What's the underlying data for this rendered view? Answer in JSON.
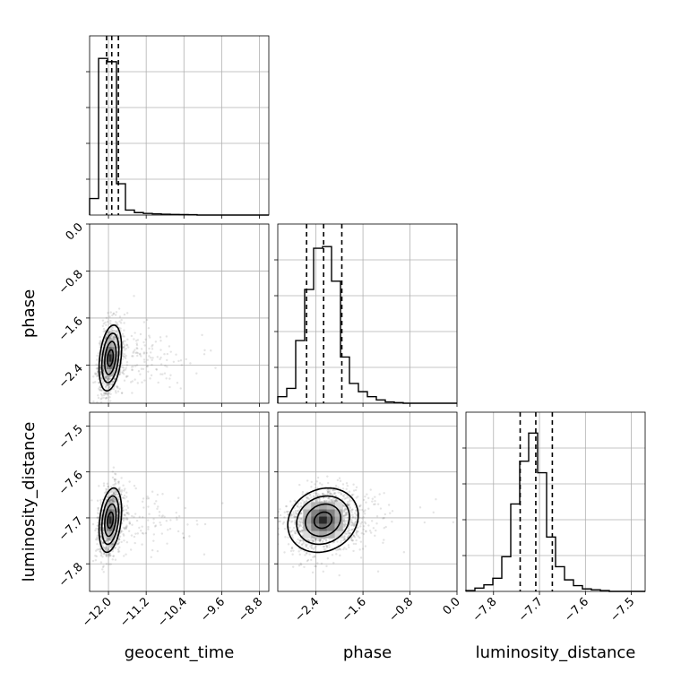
{
  "chart_data": {
    "type": "corner",
    "parameters": [
      {
        "name": "geocent_time",
        "label": "geocent_time",
        "range": [
          -12.4,
          -8.6
        ],
        "ticks": [
          -12.0,
          -11.2,
          -10.4,
          -9.6,
          -8.8
        ],
        "tick_labels": [
          "−12.0",
          "−11.2",
          "−10.4",
          "−9.6",
          "−8.8"
        ],
        "quantiles": [
          -12.04,
          -11.93,
          -11.79
        ],
        "hist_edges": [
          -12.4,
          -12.21,
          -12.02,
          -11.83,
          -11.64,
          -11.45,
          -11.26,
          -11.07,
          -10.88,
          -10.69,
          -10.5,
          -10.31,
          -10.12,
          -9.93,
          -9.74,
          -9.55,
          -9.36,
          -9.17,
          -8.98,
          -8.79,
          -8.6
        ],
        "hist_values": [
          0.1,
          0.95,
          0.93,
          0.19,
          0.03,
          0.015,
          0.01,
          0.007,
          0.005,
          0.004,
          0.003,
          0.002,
          0,
          0,
          0,
          0,
          0,
          0,
          0,
          0
        ]
      },
      {
        "name": "phase",
        "label": "phase",
        "range": [
          -3.05,
          0.0
        ],
        "ticks": [
          -2.4,
          -1.6,
          -0.8,
          0.0
        ],
        "tick_labels": [
          "−2.4",
          "−1.6",
          "−0.8",
          "0.0"
        ],
        "quantiles": [
          -2.56,
          -2.27,
          -1.96
        ],
        "hist_edges": [
          -3.05,
          -2.8975,
          -2.745,
          -2.5925,
          -2.44,
          -2.2875,
          -2.135,
          -1.9825,
          -1.83,
          -1.6775,
          -1.525,
          -1.3725,
          -1.22,
          -1.0675,
          -0.915,
          -0.7625,
          -0.61,
          -0.4575,
          -0.305,
          -0.1525,
          0.0
        ],
        "hist_values": [
          0.04,
          0.09,
          0.38,
          0.69,
          0.94,
          0.95,
          0.74,
          0.28,
          0.12,
          0.07,
          0.04,
          0.02,
          0.008,
          0.004,
          0,
          0,
          0,
          0,
          0,
          0
        ]
      },
      {
        "name": "luminosity_distance",
        "label": "luminosity_distance",
        "range": [
          -7.86,
          -7.47
        ],
        "ticks": [
          -7.8,
          -7.7,
          -7.6,
          -7.5
        ],
        "tick_labels": [
          "−7.8",
          "−7.7",
          "−7.6",
          "−7.5"
        ],
        "quantiles": [
          -7.742,
          -7.708,
          -7.672
        ],
        "hist_edges": [
          -7.86,
          -7.8405,
          -7.821,
          -7.8015,
          -7.782,
          -7.7625,
          -7.743,
          -7.7235,
          -7.704,
          -7.6845,
          -7.665,
          -7.6455,
          -7.626,
          -7.6065,
          -7.587,
          -7.5675,
          -7.548,
          -7.5285,
          -7.509,
          -7.4895,
          -7.47
        ],
        "hist_values": [
          0.005,
          0.02,
          0.04,
          0.08,
          0.21,
          0.53,
          0.79,
          0.96,
          0.72,
          0.33,
          0.15,
          0.07,
          0.035,
          0.015,
          0.01,
          0.005,
          0,
          0,
          0,
          0
        ]
      }
    ],
    "joint": [
      {
        "x": "geocent_time",
        "y": "phase",
        "center": [
          -11.96,
          -2.28
        ],
        "spread": [
          0.12,
          0.28
        ],
        "rho": 0.3,
        "contour_level": [
          0.5,
          1.0,
          1.5,
          2.0
        ]
      },
      {
        "x": "geocent_time",
        "y": "luminosity_distance",
        "center": [
          -11.96,
          -7.705
        ],
        "spread": [
          0.12,
          0.035
        ],
        "rho": 0.3,
        "contour_level": [
          0.5,
          1.0,
          1.5,
          2.0
        ]
      },
      {
        "x": "phase",
        "y": "luminosity_distance",
        "center": [
          -2.28,
          -7.705
        ],
        "spread": [
          0.3,
          0.035
        ],
        "rho": 0.15,
        "contour_level": [
          0.5,
          1.0,
          1.5,
          2.0
        ]
      }
    ],
    "grid": true,
    "xlabel": "",
    "ylabel": ""
  }
}
